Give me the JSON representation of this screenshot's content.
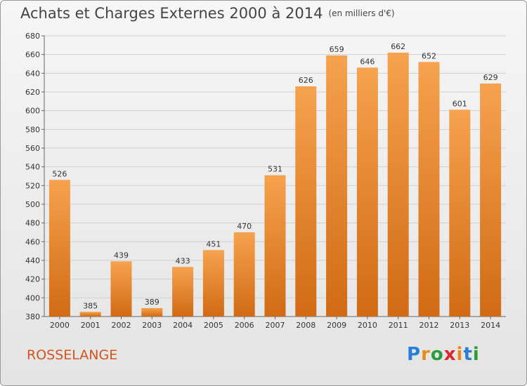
{
  "title": "Achats et Charges Externes 2000 à 2014",
  "unit_note": "(en milliers d'€)",
  "commune": "ROSSELANGE",
  "logo": {
    "letters": [
      "P",
      "r",
      "o",
      "x",
      "i",
      "t",
      "i"
    ],
    "colors": [
      "#2a7fd4",
      "#e8891b",
      "#2a9d3a",
      "#d7282f",
      "#e8891b",
      "#2a7fd4",
      "#2a9d3a"
    ]
  },
  "chart_data": {
    "type": "bar",
    "categories": [
      "2000",
      "2001",
      "2002",
      "2003",
      "2004",
      "2005",
      "2006",
      "2007",
      "2008",
      "2009",
      "2010",
      "2011",
      "2012",
      "2013",
      "2014"
    ],
    "values": [
      526,
      385,
      439,
      389,
      433,
      451,
      470,
      531,
      626,
      659,
      646,
      662,
      652,
      601,
      629
    ],
    "ylim": [
      380,
      680
    ],
    "yticks": [
      380,
      400,
      420,
      440,
      460,
      480,
      500,
      520,
      540,
      560,
      580,
      600,
      620,
      640,
      660,
      680
    ],
    "grid": true,
    "bar_color_top": "#f6a24e",
    "bar_color_bottom": "#d16a14"
  }
}
